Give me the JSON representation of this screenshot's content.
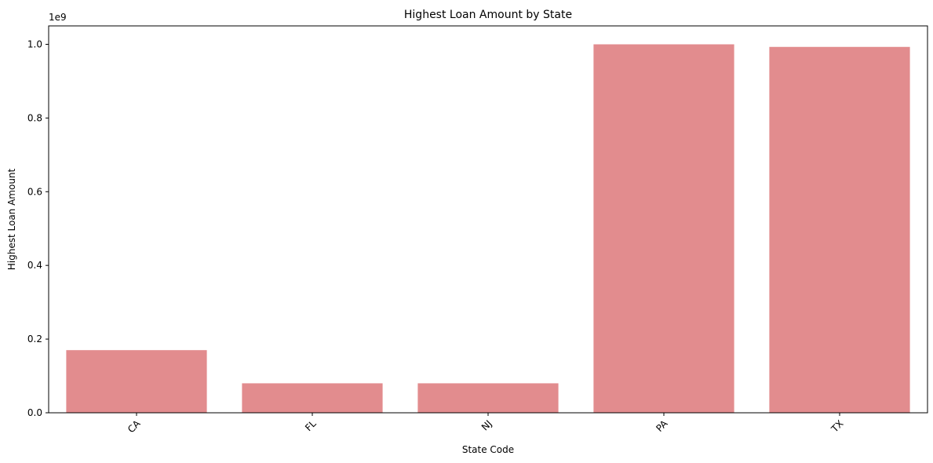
{
  "chart_data": {
    "type": "bar",
    "title": "Highest Loan Amount by State",
    "xlabel": "State Code",
    "ylabel": "Highest Loan Amount",
    "y_offset_label": "1e9",
    "categories": [
      "CA",
      "FL",
      "NJ",
      "PA",
      "TX"
    ],
    "values": [
      170000000,
      80000000,
      80000000,
      1000000000,
      993000000
    ],
    "ylim": [
      0,
      1050000000
    ],
    "yticks": [
      0,
      200000000,
      400000000,
      600000000,
      800000000,
      1000000000
    ],
    "ytick_labels": [
      "0.0",
      "0.2",
      "0.4",
      "0.6",
      "0.8",
      "1.0"
    ],
    "bar_color": "#e28c8e",
    "grid": false,
    "legend": "none"
  }
}
